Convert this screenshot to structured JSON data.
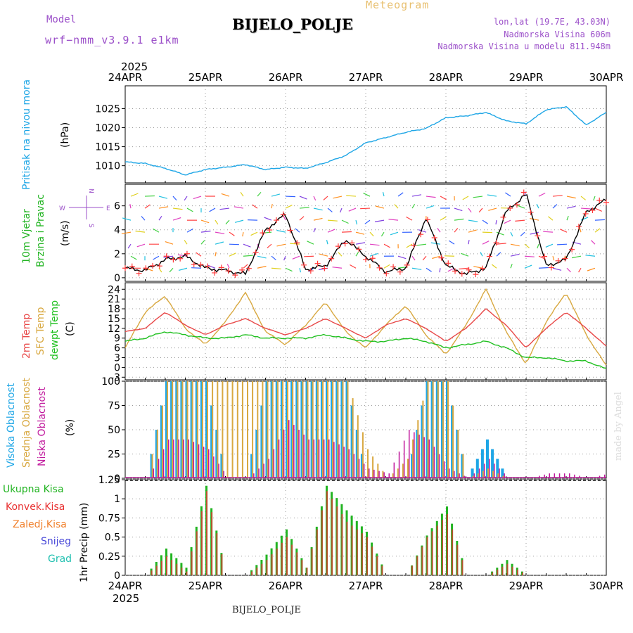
{
  "header": {
    "model_label": "Model",
    "model_name": "wrf−nmm_v3.9.1  e1km",
    "station_title": "BIJELO_POLJE",
    "product": "Meteogram",
    "location": "lon,lat (19.7E, 43.03N)",
    "altitude": "Nadmorska Visina 606m",
    "model_altitude": "Nadmorska Visina u modelu 811.948m"
  },
  "footer": {
    "station": "BIJELO_POLJE",
    "credit": "made by Angel"
  },
  "time_axis": {
    "year": "2025",
    "labels": [
      "24APR",
      "25APR",
      "26APR",
      "27APR",
      "28APR",
      "29APR",
      "30APR"
    ]
  },
  "colors": {
    "pressure": "#1ea6e6",
    "wind_speed": "#000000",
    "wind_marker": "#ff3a3a",
    "temp2m": "#e84848",
    "sfc_temp": "#d8a840",
    "dewpoint": "#20c020",
    "high_cloud": "#1ea6e6",
    "mid_cloud": "#d8a840",
    "low_cloud": "#c0189c",
    "precip_total": "#22b422",
    "precip_conv": "#e83030",
    "freezing": "#f07f2a",
    "snow": "#4848d8",
    "graupel": "#20c0b0"
  },
  "panels": {
    "pressure": {
      "label": "Pritisak na nivou mora",
      "unit": "(hPa)"
    },
    "wind": {
      "label_line1": "10m  Vjetar",
      "label_line2": "Brzina i Pravac",
      "unit": "(m/s)",
      "compass_n": "N",
      "compass_s": "S",
      "compass_w": "W",
      "compass_e": "E"
    },
    "temp": {
      "label1": "2m Temp",
      "label2": "SFC Temp",
      "label3": "dewpt Temp",
      "unit": "(C)"
    },
    "cloud": {
      "label1": "Visoka Oblacnost",
      "label2": "Srednja Oblacnost",
      "label3": "Niska Oblacnost",
      "unit": "(%)"
    },
    "precip": {
      "legend": [
        "Ukupna Kisa",
        "Konvek.Kisa",
        "Zaledj.Kisa",
        "Snijeg",
        "Grad"
      ],
      "ylabel": "1hr Precip (mm)"
    }
  },
  "chart_data": [
    {
      "type": "line",
      "title": "Pritisak na nivou mora",
      "ylabel": "(hPa)",
      "x": [
        "24APR 00",
        "24APR 06",
        "24APR 12",
        "24APR 18",
        "25APR 00",
        "25APR 06",
        "25APR 12",
        "25APR 18",
        "26APR 00",
        "26APR 06",
        "26APR 12",
        "26APR 18",
        "27APR 00",
        "27APR 06",
        "27APR 12",
        "27APR 18",
        "28APR 00",
        "28APR 06",
        "28APR 12",
        "28APR 18",
        "29APR 00",
        "29APR 06",
        "29APR 12",
        "29APR 18",
        "30APR 00"
      ],
      "series": [
        {
          "name": "",
          "values": [
            1011.0,
            1010.6,
            1009.3,
            1007.6,
            1009.0,
            1009.6,
            1010.3,
            1009.0,
            1009.6,
            1009.3,
            1010.8,
            1012.7,
            1016.0,
            1017.4,
            1018.8,
            1019.8,
            1022.6,
            1023.1,
            1024.0,
            1021.8,
            1021.0,
            1024.7,
            1025.5,
            1020.7,
            1024.0
          ]
        }
      ],
      "ylim": [
        1005.5,
        1031
      ],
      "yticks": [
        1010,
        1015,
        1020,
        1025
      ],
      "grid": true
    },
    {
      "type": "line",
      "title": "10m Vjetar Brzina i Pravac",
      "ylabel": "(m/s)",
      "x": [
        "24APR 00",
        "24APR 06",
        "24APR 12",
        "24APR 18",
        "25APR 00",
        "25APR 06",
        "25APR 12",
        "25APR 18",
        "26APR 00",
        "26APR 06",
        "26APR 12",
        "26APR 18",
        "27APR 00",
        "27APR 06",
        "27APR 12",
        "27APR 18",
        "28APR 00",
        "28APR 06",
        "28APR 12",
        "28APR 18",
        "29APR 00",
        "29APR 06",
        "29APR 12",
        "29APR 18",
        "30APR 00"
      ],
      "series": [
        {
          "name": "",
          "values": [
            0.8,
            0.6,
            1.5,
            1.8,
            0.8,
            0.6,
            0.3,
            4.0,
            5.3,
            0.7,
            1.0,
            3.2,
            1.8,
            0.5,
            0.8,
            5.0,
            1.0,
            0.3,
            0.8,
            5.5,
            7.0,
            1.0,
            1.5,
            5.5,
            6.5
          ]
        }
      ],
      "ylim": [
        -0.3,
        7.8
      ],
      "yticks": [
        0,
        2,
        4,
        6
      ],
      "grid": true
    },
    {
      "type": "line",
      "title": "2m Temp / SFC Temp / dewpt Temp",
      "ylabel": "(C)",
      "x": [
        "24APR 00",
        "24APR 06",
        "24APR 12",
        "24APR 18",
        "25APR 00",
        "25APR 06",
        "25APR 12",
        "25APR 18",
        "26APR 00",
        "26APR 06",
        "26APR 12",
        "26APR 18",
        "27APR 00",
        "27APR 06",
        "27APR 12",
        "27APR 18",
        "28APR 00",
        "28APR 06",
        "28APR 12",
        "28APR 18",
        "29APR 00",
        "29APR 06",
        "29APR 12",
        "29APR 18",
        "30APR 00"
      ],
      "series": [
        {
          "name": "2m Temp",
          "values": [
            11,
            12,
            17,
            13,
            10,
            13,
            15,
            12,
            10,
            12,
            15,
            12,
            9,
            13,
            15,
            12,
            8,
            12,
            18,
            13,
            6,
            12,
            17,
            12,
            6.5
          ]
        },
        {
          "name": "SFC Temp",
          "values": [
            6,
            17,
            22,
            12,
            7,
            14,
            23,
            11,
            7,
            13,
            20,
            11,
            6,
            13,
            19,
            10,
            4,
            13,
            24,
            11,
            1,
            14,
            23,
            10,
            0.5
          ]
        },
        {
          "name": "dewpt Temp",
          "values": [
            8,
            9,
            11,
            10,
            9,
            9,
            10,
            9,
            9,
            9,
            10,
            9,
            8,
            8,
            9,
            8,
            6,
            7,
            8,
            6,
            3,
            3,
            2,
            2,
            -0.5
          ]
        }
      ],
      "ylim": [
        -3.8,
        26
      ],
      "yticks": [
        -3,
        0,
        3,
        6,
        9,
        12,
        15,
        18,
        21,
        24
      ],
      "grid": true
    },
    {
      "type": "bar",
      "title": "Visoka / Srednja / Niska Oblacnost",
      "ylabel": "(%)",
      "x": [
        "24APR 00",
        "24APR 06",
        "24APR 12",
        "24APR 18",
        "25APR 00",
        "25APR 06",
        "25APR 12",
        "25APR 18",
        "26APR 00",
        "26APR 06",
        "26APR 12",
        "26APR 18",
        "27APR 00",
        "27APR 06",
        "27APR 12",
        "27APR 18",
        "28APR 00",
        "28APR 06",
        "28APR 12",
        "28APR 18",
        "29APR 00",
        "29APR 06",
        "29APR 12",
        "29APR 18",
        "30APR 00"
      ],
      "series": [
        {
          "name": "Visoka Oblacnost",
          "values": [
            0,
            0,
            100,
            100,
            100,
            0,
            0,
            100,
            100,
            100,
            100,
            100,
            0,
            0,
            0,
            100,
            100,
            0,
            40,
            0,
            0,
            0,
            0,
            0,
            0
          ]
        },
        {
          "name": "Srednja Oblacnost",
          "values": [
            0,
            0,
            100,
            100,
            100,
            100,
            100,
            100,
            100,
            100,
            100,
            100,
            30,
            0,
            20,
            100,
            100,
            0,
            10,
            0,
            0,
            0,
            0,
            0,
            0
          ]
        },
        {
          "name": "Niska Oblacnost",
          "values": [
            0,
            0,
            40,
            40,
            30,
            0,
            0,
            20,
            60,
            40,
            40,
            30,
            10,
            5,
            50,
            40,
            10,
            0,
            20,
            0,
            0,
            5,
            5,
            0,
            5
          ]
        }
      ],
      "ylim": [
        0,
        100
      ],
      "yticks": [
        0,
        25,
        50,
        75,
        100
      ],
      "grid": true
    },
    {
      "type": "bar",
      "title": "1hr Precip",
      "ylabel": "1hr Precip (mm)",
      "x": [
        "24APR 00",
        "24APR 06",
        "24APR 12",
        "24APR 18",
        "25APR 00",
        "25APR 06",
        "25APR 12",
        "25APR 18",
        "26APR 00",
        "26APR 06",
        "26APR 12",
        "26APR 18",
        "27APR 00",
        "27APR 06",
        "27APR 12",
        "27APR 18",
        "28APR 00",
        "28APR 06",
        "28APR 12",
        "28APR 18",
        "29APR 00",
        "29APR 06",
        "29APR 12",
        "29APR 18",
        "30APR 00"
      ],
      "series": [
        {
          "name": "Ukupna Kisa",
          "values": [
            0,
            0,
            0.35,
            0.1,
            1.17,
            0,
            0,
            0.27,
            0.6,
            0.1,
            1.17,
            0.85,
            0.57,
            0,
            0,
            0.52,
            0.9,
            0,
            0,
            0.2,
            0,
            0,
            0,
            0,
            0
          ]
        },
        {
          "name": "Konvek.Kisa",
          "values": [
            0,
            0,
            0.25,
            0.05,
            1.1,
            0,
            0,
            0.2,
            0.5,
            0.1,
            1.1,
            0.7,
            0.5,
            0,
            0,
            0.5,
            0.8,
            0,
            0,
            0.15,
            0,
            0,
            0,
            0,
            0
          ]
        }
      ],
      "ylim": [
        0,
        1.25
      ],
      "yticks": [
        0,
        0.25,
        0.5,
        0.75,
        1,
        1.25
      ],
      "grid": true
    }
  ]
}
